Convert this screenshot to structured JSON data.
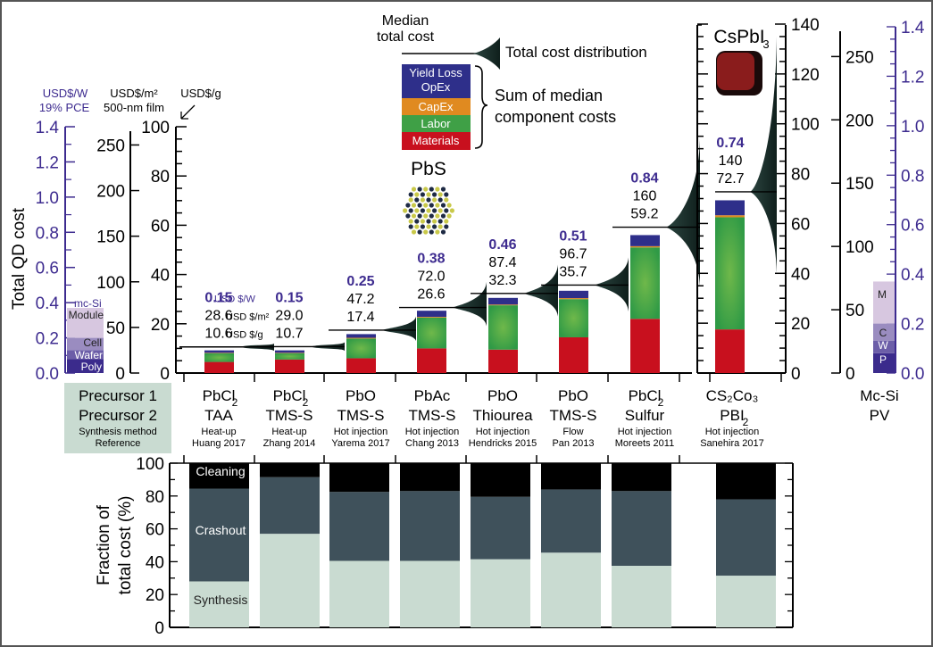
{
  "chart_data": [
    {
      "type": "bar",
      "stacked": true,
      "title": "Total QD cost",
      "ylabel": "Total QD cost",
      "ylim": [
        0,
        100
      ],
      "ylim_right": [
        0,
        140
      ],
      "axes": {
        "usd_per_w": {
          "label": "USD$/W",
          "sublabel": "19% PCE",
          "range": [
            0,
            1.4
          ],
          "ticks": [
            "0.0",
            "0.2",
            "0.4",
            "0.6",
            "0.8",
            "1.0",
            "1.2",
            "1.4"
          ],
          "color": "#3d2b8f"
        },
        "usd_per_m2": {
          "label": "USD$/m²",
          "sublabel": "500-nm film",
          "range": [
            0,
            270
          ],
          "ticks": [
            "0",
            "50",
            "100",
            "150",
            "200",
            "250"
          ]
        },
        "usd_per_g": {
          "label": "USD$/g",
          "range": [
            0,
            100
          ],
          "ticks": [
            "0",
            "20",
            "40",
            "60",
            "80",
            "100"
          ]
        },
        "usd_per_g_right": {
          "ticks": [
            "0",
            "20",
            "40",
            "60",
            "80",
            "100",
            "120",
            "140"
          ]
        }
      },
      "legend": {
        "median_label": "Median total cost",
        "distribution_label": "Total cost distribution",
        "sum_label": "Sum of median component costs",
        "components": [
          {
            "name": "Yield Loss OpEx",
            "color": "#2e2f8a"
          },
          {
            "name": "CapEx",
            "color": "#e08a20"
          },
          {
            "name": "Labor",
            "color": "#3fa046"
          },
          {
            "name": "Materials",
            "color": "#c8101e"
          }
        ]
      },
      "categories": [
        {
          "p1": "PbCl",
          "p1sub": "2",
          "p2": "TAA",
          "p2sub": "",
          "method": "Heat-up",
          "ref": "Huang 2017"
        },
        {
          "p1": "PbCl",
          "p1sub": "2",
          "p2": "TMS-S",
          "p2sub": "",
          "method": "Heat-up",
          "ref": "Zhang 2014"
        },
        {
          "p1": "PbO",
          "p1sub": "",
          "p2": "TMS-S",
          "p2sub": "",
          "method": "Hot injection",
          "ref": "Yarema 2017"
        },
        {
          "p1": "PbAc",
          "p1sub": "",
          "p2": "TMS-S",
          "p2sub": "",
          "method": "Hot injection",
          "ref": "Chang 2013"
        },
        {
          "p1": "PbO",
          "p1sub": "",
          "p2": "Thiourea",
          "p2sub": "",
          "method": "Hot injection",
          "ref": "Hendricks 2015"
        },
        {
          "p1": "PbO",
          "p1sub": "",
          "p2": "TMS-S",
          "p2sub": "",
          "method": "Flow",
          "ref": "Pan 2013"
        },
        {
          "p1": "PbCl",
          "p1sub": "2",
          "p2": "Sulfur",
          "p2sub": "",
          "method": "Hot injection",
          "ref": "Moreets 2011"
        },
        {
          "p1": "CS₂Co₃",
          "p1sub": "",
          "p2": "PBI",
          "p2sub": "2",
          "method": "Hot injection",
          "ref": "Sanehira 2017"
        }
      ],
      "series": [
        {
          "name": "Materials",
          "values": [
            4.5,
            5.5,
            6,
            10,
            9.5,
            14.5,
            22,
            17.5
          ]
        },
        {
          "name": "Labor",
          "values": [
            3.5,
            2.5,
            8,
            12.5,
            18,
            15.5,
            29,
            45
          ]
        },
        {
          "name": "CapEx",
          "values": [
            0.2,
            0.2,
            0.3,
            0.3,
            0.3,
            0.4,
            0.5,
            0.8
          ]
        },
        {
          "name": "Yield Loss OpEx",
          "values": [
            1,
            1,
            1.5,
            2.5,
            2.7,
            3,
            4.5,
            6
          ]
        }
      ],
      "median_total": {
        "usd_per_w": [
          "0.15",
          "0.15",
          "0.25",
          "0.38",
          "0.46",
          "0.51",
          "0.84",
          "0.74"
        ],
        "usd_per_m2": [
          "28.6",
          "29.0",
          "47.2",
          "72.0",
          "87.4",
          "96.7",
          "160",
          "140"
        ],
        "usd_per_g": [
          "10.6",
          "10.7",
          "17.4",
          "26.6",
          "32.3",
          "35.7",
          "59.2",
          "72.7"
        ],
        "units": [
          "USD $/W",
          "USD $/m²",
          "USD $/g"
        ]
      },
      "distribution_spread": [
        [
          9,
          12
        ],
        [
          9,
          12.5
        ],
        [
          13,
          23
        ],
        [
          19,
          37
        ],
        [
          23,
          44
        ],
        [
          25,
          47
        ],
        [
          35,
          95
        ],
        [
          40,
          135
        ]
      ],
      "material_labels": [
        "PbS",
        "CsPbI₃"
      ],
      "mcsi_pv": {
        "label": "mc-Si",
        "category": "Mc-Si PV",
        "segments": [
          {
            "name": "Poly",
            "short": "P",
            "value_usd_per_w": 0.08,
            "color": "#3b2b8c"
          },
          {
            "name": "Wafer",
            "short": "W",
            "value_usd_per_w": 0.05,
            "color": "#6c5ea8"
          },
          {
            "name": "Cell",
            "short": "C",
            "value_usd_per_w": 0.07,
            "color": "#9a8cc0"
          },
          {
            "name": "Module",
            "short": "M",
            "value_usd_per_w": 0.17,
            "color": "#d7c7e0"
          }
        ]
      },
      "row_header": {
        "line1": "Precursor 1",
        "line2": "Precursor 2",
        "line3": "Synthesis method",
        "line4": "Reference"
      }
    },
    {
      "type": "bar",
      "stacked": true,
      "ylabel": "Fraction of total cost (%)",
      "ylim": [
        0,
        100
      ],
      "ticks": [
        "0",
        "20",
        "40",
        "60",
        "80",
        "100"
      ],
      "series": [
        {
          "name": "Synthesis",
          "color": "#c9dbd1",
          "values": [
            28,
            57,
            40.5,
            40.5,
            41.5,
            45.5,
            37.5,
            31.5
          ]
        },
        {
          "name": "Crashout",
          "color": "#3f515b",
          "values": [
            56.5,
            34.5,
            42,
            42.5,
            38,
            38.5,
            45.5,
            46.5
          ]
        },
        {
          "name": "Cleaning",
          "color": "#000000",
          "values": [
            15.5,
            8.5,
            17.5,
            17,
            20.5,
            16,
            17,
            22
          ]
        }
      ]
    }
  ]
}
